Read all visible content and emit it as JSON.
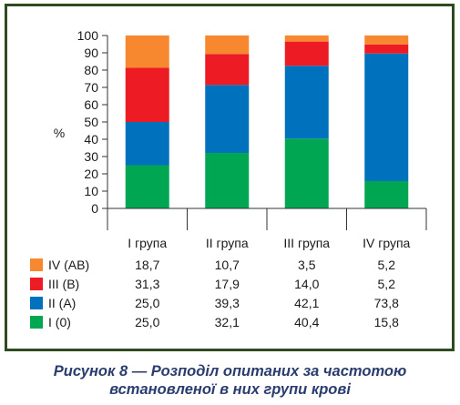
{
  "caption": {
    "line1": "Рисунок 8 — Розподіл опитаних за частотою",
    "line2": "встановленої в них групи крові"
  },
  "chart_data": {
    "type": "bar",
    "stacked": true,
    "ylabel": "%",
    "ylim": [
      0,
      100
    ],
    "y_ticks": [
      0,
      10,
      20,
      30,
      40,
      50,
      60,
      70,
      80,
      90,
      100
    ],
    "grid": false,
    "categories": [
      "I група",
      "II група",
      "III група",
      "IV група"
    ],
    "series": [
      {
        "name": "I (0)",
        "color": "#00a651",
        "labels": [
          "25,0",
          "32,1",
          "40,4",
          "15,8"
        ],
        "values": [
          25.0,
          32.1,
          40.4,
          15.8
        ]
      },
      {
        "name": "II (A)",
        "color": "#0071bc",
        "labels": [
          "25,0",
          "39,3",
          "42,1",
          "73,8"
        ],
        "values": [
          25.0,
          39.3,
          42.1,
          73.8
        ]
      },
      {
        "name": "III (B)",
        "color": "#ed1c24",
        "labels": [
          "31,3",
          "17,9",
          "14,0",
          "5,2"
        ],
        "values": [
          31.3,
          17.9,
          14.0,
          5.2
        ]
      },
      {
        "name": "IV (AB)",
        "color": "#f7882f",
        "labels": [
          "18,7",
          "10,7",
          "3,5",
          "5,2"
        ],
        "values": [
          18.7,
          10.7,
          3.5,
          5.2
        ]
      }
    ],
    "table_row_order": [
      "IV (AB)",
      "III (B)",
      "II (A)",
      "I (0)"
    ]
  }
}
